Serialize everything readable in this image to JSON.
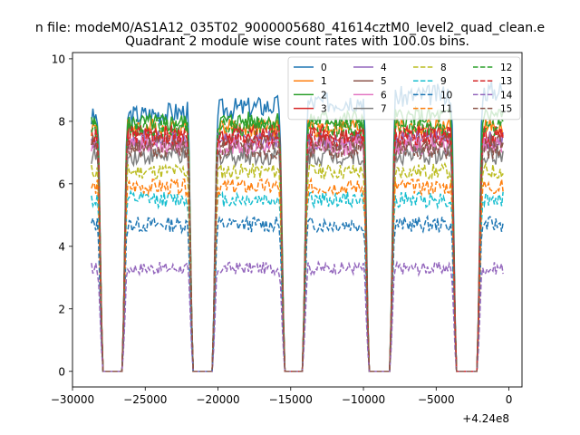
{
  "chart_data": {
    "type": "line",
    "suptitle": "n file: modeM0/AS1A12_035T02_9000005680_41614cztM0_level2_quad_clean.e",
    "title": "Quadrant 2 module wise count rates with 100.0s bins.",
    "xlabel": "",
    "ylabel": "",
    "x_offset_label": "+4.24e8",
    "xlim": [
      -30000,
      900
    ],
    "ylim": [
      -0.5,
      10.2
    ],
    "xticks": [
      -30000,
      -25000,
      -20000,
      -15000,
      -10000,
      -5000,
      0
    ],
    "xtick_labels": [
      "−30000",
      "−25000",
      "−20000",
      "−15000",
      "−10000",
      "−5000",
      "0"
    ],
    "yticks": [
      0,
      2,
      4,
      6,
      8,
      10
    ],
    "ytick_labels": [
      "0",
      "2",
      "4",
      "6",
      "8",
      "10"
    ],
    "bin_width_s": 100,
    "gap_intervals": [
      [
        -28000,
        -26500
      ],
      [
        -21800,
        -20300
      ],
      [
        -15500,
        -14100
      ],
      [
        -9700,
        -8100
      ],
      [
        -3700,
        -2100
      ]
    ],
    "on_intervals": [
      [
        -28700,
        -28000
      ],
      [
        -26500,
        -21800
      ],
      [
        -20300,
        -15500
      ],
      [
        -14100,
        -9700
      ],
      [
        -8100,
        -3700
      ],
      [
        -2100,
        -400
      ]
    ],
    "legend": {
      "location": "top-right",
      "columns": 4
    },
    "series": [
      {
        "name": "0",
        "color": "#1f77b4",
        "style": "solid",
        "level": 8.1,
        "slope": 0.9,
        "noise": 0.35
      },
      {
        "name": "1",
        "color": "#ff7f0e",
        "style": "solid",
        "level": 7.8,
        "slope": 0.0,
        "noise": 0.3
      },
      {
        "name": "2",
        "color": "#2ca02c",
        "style": "solid",
        "level": 7.9,
        "slope": 0.3,
        "noise": 0.3
      },
      {
        "name": "3",
        "color": "#d62728",
        "style": "solid",
        "level": 7.6,
        "slope": 0.0,
        "noise": 0.3
      },
      {
        "name": "4",
        "color": "#9467bd",
        "style": "solid",
        "level": 7.4,
        "slope": 0.0,
        "noise": 0.3
      },
      {
        "name": "5",
        "color": "#8c564b",
        "style": "solid",
        "level": 7.3,
        "slope": 0.0,
        "noise": 0.3
      },
      {
        "name": "6",
        "color": "#e377c2",
        "style": "solid",
        "level": 7.2,
        "slope": 0.0,
        "noise": 0.3
      },
      {
        "name": "7",
        "color": "#7f7f7f",
        "style": "solid",
        "level": 6.9,
        "slope": 0.0,
        "noise": 0.3
      },
      {
        "name": "8",
        "color": "#bcbd22",
        "style": "dashed",
        "level": 6.4,
        "slope": 0.0,
        "noise": 0.25
      },
      {
        "name": "9",
        "color": "#17becf",
        "style": "dashed",
        "level": 5.5,
        "slope": 0.0,
        "noise": 0.25
      },
      {
        "name": "10",
        "color": "#1f77b4",
        "style": "dashed",
        "level": 4.7,
        "slope": 0.0,
        "noise": 0.25
      },
      {
        "name": "11",
        "color": "#ff7f0e",
        "style": "dashed",
        "level": 5.9,
        "slope": 0.0,
        "noise": 0.25
      },
      {
        "name": "12",
        "color": "#2ca02c",
        "style": "dashed",
        "level": 7.8,
        "slope": 0.0,
        "noise": 0.3
      },
      {
        "name": "13",
        "color": "#d62728",
        "style": "dashed",
        "level": 7.5,
        "slope": 0.0,
        "noise": 0.3
      },
      {
        "name": "14",
        "color": "#9467bd",
        "style": "dashed",
        "level": 3.3,
        "slope": 0.0,
        "noise": 0.2
      },
      {
        "name": "15",
        "color": "#8c564b",
        "style": "dashed",
        "level": 7.1,
        "slope": 0.0,
        "noise": 0.3
      }
    ]
  }
}
